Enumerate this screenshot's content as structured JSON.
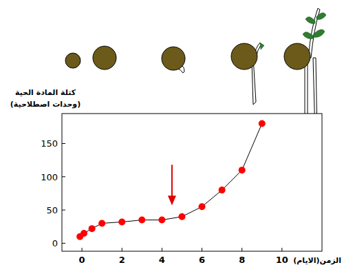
{
  "chart_data": {
    "type": "line",
    "y_label": [
      "كتلة المادة الحية",
      "(وحدات اصطلاحية)"
    ],
    "x_label": "الزمن(الايام)",
    "x": [
      -0.1,
      0.1,
      0.5,
      1,
      2,
      3,
      4,
      5,
      6,
      7,
      8,
      9
    ],
    "values": [
      10,
      15,
      22,
      30,
      32,
      35,
      35,
      40,
      55,
      80,
      110,
      180
    ],
    "color": "#ff0000",
    "marker": "circle",
    "xlim": [
      -1,
      12
    ],
    "ylim": [
      -12,
      195
    ],
    "xticks": [
      0,
      2,
      4,
      6,
      8,
      10
    ],
    "yticks": [
      0,
      50,
      100,
      150
    ],
    "grid": false,
    "annotations": [
      {
        "type": "arrow",
        "x": 4.5,
        "y_start": 118,
        "y_end": 57,
        "color": "#e00000"
      }
    ]
  }
}
